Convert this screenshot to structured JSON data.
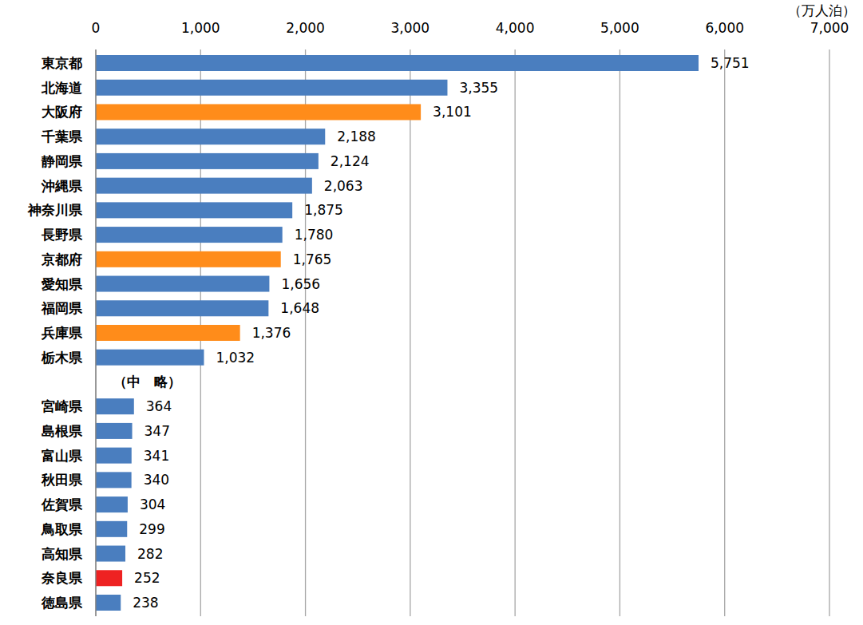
{
  "chart_data": {
    "type": "bar",
    "orientation": "horizontal",
    "x_label": "（万人泊）",
    "categories": [
      "東京都",
      "北海道",
      "大阪府",
      "千葉県",
      "静岡県",
      "沖縄県",
      "神奈川県",
      "長野県",
      "京都府",
      "愛知県",
      "福岡県",
      "兵庫県",
      "栃木県",
      "（中　略）",
      "宮崎県",
      "島根県",
      "富山県",
      "秋田県",
      "佐賀県",
      "鳥取県",
      "高知県",
      "奈良県",
      "徳島県"
    ],
    "values": [
      5751,
      3355,
      3101,
      2188,
      2124,
      2063,
      1875,
      1780,
      1765,
      1656,
      1648,
      1376,
      1032,
      null,
      364,
      347,
      341,
      340,
      304,
      299,
      282,
      252,
      238
    ],
    "value_labels": [
      "5,751",
      "3,355",
      "3,101",
      "2,188",
      "2,124",
      "2,063",
      "1,875",
      "1,780",
      "1,765",
      "1,656",
      "1,648",
      "1,376",
      "1,032",
      null,
      "364",
      "347",
      "341",
      "340",
      "304",
      "299",
      "282",
      "252",
      "238"
    ],
    "colors": [
      "#4a7ebf",
      "#4a7ebf",
      "#ff8c1a",
      "#4a7ebf",
      "#4a7ebf",
      "#4a7ebf",
      "#4a7ebf",
      "#4a7ebf",
      "#ff8c1a",
      "#4a7ebf",
      "#4a7ebf",
      "#ff8c1a",
      "#4a7ebf",
      null,
      "#4a7ebf",
      "#4a7ebf",
      "#4a7ebf",
      "#4a7ebf",
      "#4a7ebf",
      "#4a7ebf",
      "#4a7ebf",
      "#ee2222",
      "#4a7ebf"
    ],
    "xlim": [
      0,
      7000
    ],
    "xticks": [
      0,
      {
        "value": 1000,
        "label": "1,000"
      },
      {
        "value": 2000,
        "label": "2,000"
      },
      {
        "value": 3000,
        "label": "3,000"
      },
      {
        "value": 4000,
        "label": "4,000"
      },
      {
        "value": 5000,
        "label": "5,000"
      },
      {
        "value": 6000,
        "label": "6,000"
      },
      {
        "value": 7000,
        "label": "7,000"
      }
    ],
    "grid": true,
    "data_labels": true
  }
}
